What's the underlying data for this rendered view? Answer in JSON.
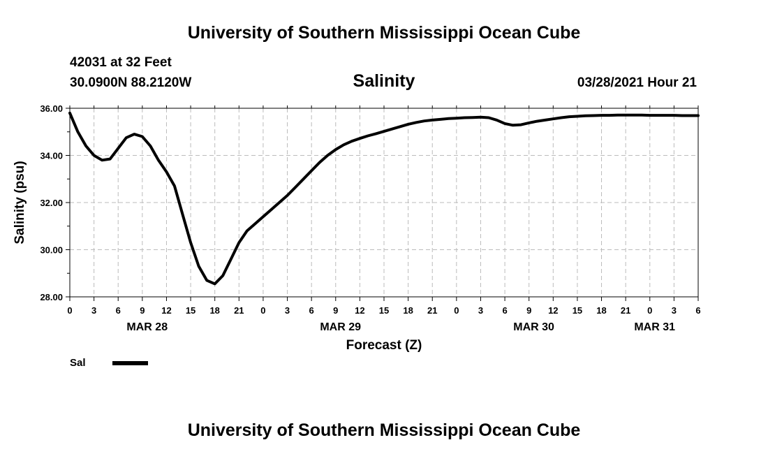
{
  "header": {
    "title": "University of Southern Mississippi Ocean Cube",
    "station": "42031 at 32 Feet",
    "location": "30.0900N  88.2120W",
    "date": "03/28/2021 Hour 21",
    "footer_title": "University of Southern Mississippi Ocean Cube"
  },
  "chart_data": {
    "type": "line",
    "title": "Salinity",
    "xlabel": "Forecast (Z)",
    "ylabel": "Salinity (psu)",
    "ylim": [
      28.0,
      36.0
    ],
    "yticks": [
      "28.00",
      "30.00",
      "32.00",
      "34.00",
      "36.00"
    ],
    "xlim": [
      0,
      78
    ],
    "xtick_step_hours": 3,
    "xtick_labels": [
      "0",
      "3",
      "6",
      "9",
      "12",
      "15",
      "18",
      "21",
      "0",
      "3",
      "6",
      "9",
      "12",
      "15",
      "18",
      "21",
      "0",
      "3",
      "6",
      "9",
      "12",
      "15",
      "18",
      "21",
      "0",
      "3",
      "6"
    ],
    "date_labels": [
      {
        "label": "MAR 28",
        "hour": 9.6
      },
      {
        "label": "MAR 29",
        "hour": 33.6
      },
      {
        "label": "MAR 30",
        "hour": 57.6
      },
      {
        "label": "MAR 31",
        "hour": 72.6
      }
    ],
    "grid": true,
    "legend": {
      "placement": "bottom-left",
      "entries": [
        "Sal"
      ]
    },
    "series": [
      {
        "name": "Sal",
        "color": "#000000",
        "x": [
          0,
          1,
          2,
          3,
          4,
          5,
          6,
          7,
          8,
          9,
          10,
          11,
          12,
          13,
          14,
          15,
          16,
          17,
          18,
          19,
          20,
          21,
          22,
          23,
          24,
          25,
          26,
          27,
          28,
          29,
          30,
          31,
          32,
          33,
          34,
          35,
          36,
          37,
          38,
          39,
          40,
          41,
          42,
          43,
          44,
          45,
          46,
          47,
          48,
          49,
          50,
          51,
          52,
          53,
          54,
          55,
          56,
          57,
          58,
          59,
          60,
          61,
          62,
          63,
          64,
          65,
          66,
          67,
          68,
          69,
          70,
          71,
          72,
          73,
          74,
          75,
          76,
          77,
          78
        ],
        "values": [
          35.8,
          35.0,
          34.4,
          34.0,
          33.8,
          33.85,
          34.3,
          34.75,
          34.9,
          34.8,
          34.4,
          33.8,
          33.3,
          32.7,
          31.5,
          30.3,
          29.3,
          28.7,
          28.55,
          28.9,
          29.6,
          30.3,
          30.8,
          31.1,
          31.4,
          31.7,
          32.0,
          32.3,
          32.65,
          33.0,
          33.35,
          33.7,
          34.0,
          34.25,
          34.45,
          34.6,
          34.72,
          34.83,
          34.92,
          35.02,
          35.12,
          35.22,
          35.32,
          35.4,
          35.46,
          35.5,
          35.53,
          35.56,
          35.58,
          35.6,
          35.61,
          35.62,
          35.6,
          35.5,
          35.35,
          35.28,
          35.3,
          35.38,
          35.45,
          35.5,
          35.55,
          35.6,
          35.64,
          35.66,
          35.68,
          35.69,
          35.7,
          35.7,
          35.71,
          35.71,
          35.71,
          35.71,
          35.7,
          35.7,
          35.7,
          35.7,
          35.69,
          35.69,
          35.69
        ]
      }
    ]
  }
}
